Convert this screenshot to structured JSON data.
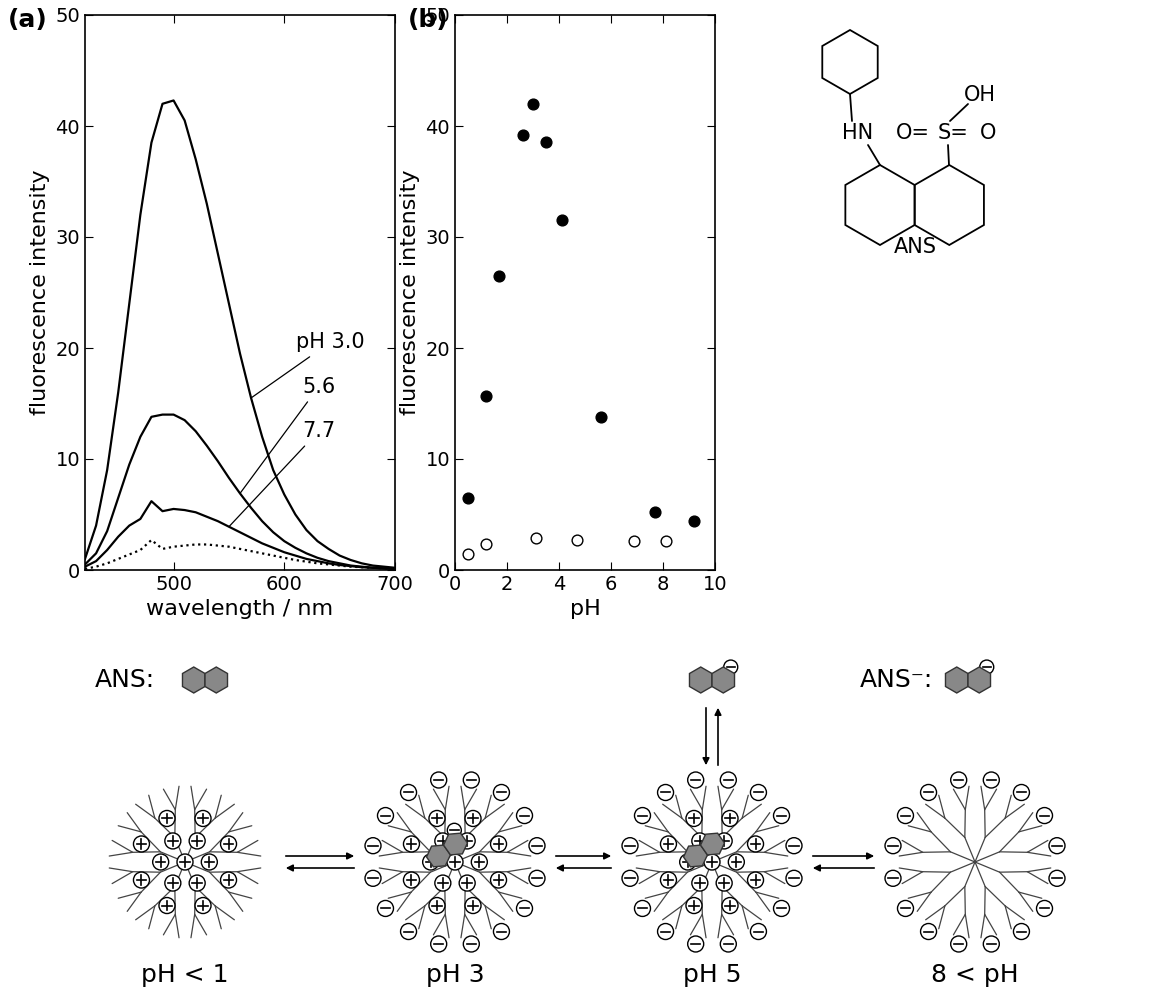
{
  "panel_labels": [
    "(a)",
    "(b)"
  ],
  "chart_data": [
    {
      "type": "line",
      "xlabel": "wavelength / nm",
      "ylabel": "fluorescence intensity",
      "xlim": [
        420,
        700
      ],
      "xticks": [
        500,
        600,
        700
      ],
      "ylim": [
        0,
        50
      ],
      "yticks": [
        0,
        10,
        20,
        30,
        40,
        50
      ],
      "x": [
        420,
        430,
        440,
        450,
        460,
        470,
        480,
        490,
        500,
        510,
        520,
        530,
        540,
        550,
        560,
        570,
        580,
        590,
        600,
        610,
        620,
        630,
        640,
        650,
        660,
        670,
        680,
        690,
        700
      ],
      "series": [
        {
          "name": "pH 3.0",
          "color": "#000000",
          "line_style": "solid",
          "values": [
            1.0,
            4.0,
            9.0,
            16.0,
            24.0,
            32.0,
            38.5,
            42.0,
            42.3,
            40.5,
            37.0,
            33.0,
            28.5,
            24.0,
            19.5,
            15.5,
            12.0,
            9.0,
            6.8,
            5.0,
            3.6,
            2.6,
            1.9,
            1.3,
            0.9,
            0.6,
            0.4,
            0.3,
            0.2
          ]
        },
        {
          "name": "5.6",
          "color": "#000000",
          "line_style": "solid",
          "values": [
            0.5,
            1.5,
            3.5,
            6.5,
            9.5,
            12.0,
            13.8,
            14.0,
            14.0,
            13.5,
            12.5,
            11.2,
            9.8,
            8.3,
            6.9,
            5.6,
            4.4,
            3.4,
            2.6,
            2.0,
            1.5,
            1.1,
            0.8,
            0.6,
            0.4,
            0.3,
            0.2,
            0.15,
            0.1
          ]
        },
        {
          "name": "7.7",
          "color": "#000000",
          "line_style": "solid",
          "values": [
            0.3,
            0.8,
            1.8,
            3.0,
            4.0,
            4.6,
            6.2,
            5.3,
            5.5,
            5.4,
            5.2,
            4.8,
            4.4,
            3.9,
            3.4,
            2.9,
            2.4,
            2.0,
            1.6,
            1.3,
            1.0,
            0.8,
            0.6,
            0.45,
            0.35,
            0.25,
            0.2,
            0.15,
            0.1
          ]
        },
        {
          "color": "#000000",
          "line_style": "dotted",
          "values": [
            0.1,
            0.3,
            0.6,
            1.0,
            1.4,
            1.8,
            2.7,
            1.9,
            2.1,
            2.2,
            2.3,
            2.3,
            2.2,
            2.1,
            1.9,
            1.7,
            1.5,
            1.3,
            1.1,
            0.9,
            0.75,
            0.6,
            0.5,
            0.4,
            0.3,
            0.25,
            0.2,
            0.15,
            0.1
          ]
        }
      ]
    },
    {
      "type": "scatter",
      "xlabel": "pH",
      "ylabel": "fluorescence intensity",
      "xlim": [
        0,
        10
      ],
      "xticks": [
        0,
        2,
        4,
        6,
        8,
        10
      ],
      "ylim": [
        0,
        50
      ],
      "yticks": [
        0,
        10,
        20,
        30,
        40,
        50
      ],
      "series": [
        {
          "color": "#000000",
          "marker": "filled_circle",
          "x": [
            0.5,
            1.2,
            1.7,
            2.6,
            3.0,
            3.5,
            4.1,
            5.6,
            7.7,
            9.2
          ],
          "values": [
            6.5,
            15.7,
            26.5,
            39.2,
            42.0,
            38.6,
            31.5,
            13.8,
            5.2,
            4.4
          ]
        },
        {
          "color": "#000000",
          "marker": "open_circle",
          "x": [
            0.5,
            1.2,
            3.1,
            4.7,
            6.9,
            8.1
          ],
          "values": [
            1.4,
            2.3,
            2.9,
            2.7,
            2.6,
            2.6
          ]
        }
      ]
    }
  ],
  "structure": {
    "name": "ANS",
    "atoms": [
      "OH",
      "HN",
      "O=",
      "S=",
      "O"
    ]
  },
  "diagram": {
    "species": [
      {
        "label": "ANS:",
        "charged": false
      },
      {
        "label": "ANS⁻:",
        "charged": true
      }
    ],
    "states": [
      "pH < 1",
      "pH 3",
      "pH 5",
      "8 < pH"
    ]
  }
}
